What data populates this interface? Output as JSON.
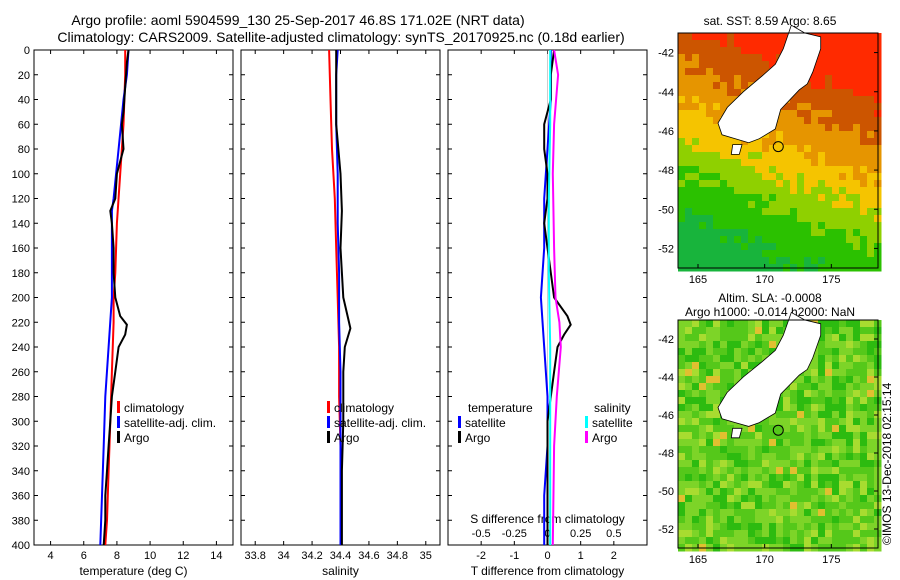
{
  "title": {
    "line1": "Argo profile: aoml 5904599_130 25-Sep-2017 46.8S 171.02E (NRT data)",
    "line2": "Climatology: CARS2009. Satellite-adjusted climatology: synTS_20170925.nc (0.18d earlier)"
  },
  "colors": {
    "climatology": "#ff0000",
    "satellite": "#0000ff",
    "argo": "#000000",
    "sat_s": "#00ffff",
    "argo_s": "#ff00ff"
  },
  "chart_data": [
    {
      "type": "line",
      "id": "temperature",
      "xlabel": "temperature (deg C)",
      "ylabel": "",
      "xlim": [
        3,
        15
      ],
      "ylim": [
        400,
        0
      ],
      "xticks": [
        "4",
        "6",
        "8",
        "10",
        "12",
        "14"
      ],
      "yticks": [
        "0",
        "20",
        "40",
        "60",
        "80",
        "100",
        "120",
        "140",
        "160",
        "180",
        "200",
        "220",
        "240",
        "260",
        "280",
        "300",
        "320",
        "340",
        "360",
        "380",
        "400"
      ],
      "legend": [
        "climatology",
        "satellite-adj. clim.",
        "Argo"
      ],
      "series": [
        {
          "name": "climatology",
          "pressure": [
            0,
            20,
            60,
            100,
            140,
            180,
            200,
            220,
            260,
            300,
            340,
            380,
            400
          ],
          "values": [
            8.5,
            8.5,
            8.4,
            8.2,
            8.0,
            7.9,
            7.8,
            7.8,
            7.7,
            7.6,
            7.5,
            7.4,
            7.3
          ]
        },
        {
          "name": "satellite-adj. clim.",
          "pressure": [
            0,
            20,
            40,
            80,
            120,
            130,
            160,
            200,
            240,
            280,
            320,
            360,
            400
          ],
          "values": [
            8.7,
            8.6,
            8.4,
            8.1,
            7.8,
            7.7,
            7.7,
            7.7,
            7.5,
            7.3,
            7.2,
            7.1,
            7.0
          ]
        },
        {
          "name": "Argo",
          "pressure": [
            0,
            10,
            30,
            50,
            60,
            80,
            100,
            120,
            130,
            140,
            160,
            180,
            200,
            215,
            222,
            230,
            240,
            260,
            280,
            300,
            320,
            340,
            360,
            380,
            400
          ],
          "values": [
            8.7,
            8.6,
            8.5,
            8.4,
            8.3,
            8.4,
            8.0,
            7.9,
            7.6,
            7.7,
            7.8,
            7.8,
            7.9,
            8.2,
            8.6,
            8.5,
            8.1,
            7.9,
            7.7,
            7.6,
            7.5,
            7.4,
            7.3,
            7.3,
            7.2
          ]
        }
      ]
    },
    {
      "type": "line",
      "id": "salinity",
      "xlabel": "salinity",
      "xlim": [
        33.7,
        35.1
      ],
      "ylim": [
        400,
        0
      ],
      "xticks": [
        "33.8",
        "34",
        "34.2",
        "34.4",
        "34.6",
        "34.8",
        "35"
      ],
      "legend": [
        "climatology",
        "satellite-adj. clim.",
        "Argo"
      ],
      "series": [
        {
          "name": "climatology",
          "pressure": [
            0,
            40,
            80,
            120,
            160,
            200,
            240,
            280,
            320,
            360,
            400
          ],
          "values": [
            34.32,
            34.33,
            34.34,
            34.36,
            34.37,
            34.38,
            34.39,
            34.39,
            34.4,
            34.4,
            34.4
          ]
        },
        {
          "name": "satellite-adj. clim.",
          "pressure": [
            0,
            20,
            60,
            100,
            140,
            180,
            220,
            260,
            300,
            340,
            400
          ],
          "values": [
            34.38,
            34.37,
            34.37,
            34.38,
            34.38,
            34.39,
            34.39,
            34.4,
            34.4,
            34.4,
            34.4
          ]
        },
        {
          "name": "Argo",
          "pressure": [
            0,
            20,
            60,
            100,
            130,
            160,
            180,
            200,
            215,
            225,
            240,
            260,
            300,
            340,
            380,
            400
          ],
          "values": [
            34.37,
            34.37,
            34.37,
            34.4,
            34.41,
            34.4,
            34.41,
            34.42,
            34.45,
            34.47,
            34.43,
            34.42,
            34.42,
            34.41,
            34.41,
            34.41
          ]
        }
      ]
    },
    {
      "type": "line",
      "id": "difference",
      "xlabel": "T difference from climatology",
      "xlabel_top": "S difference from climatology",
      "xlim": [
        -3,
        3
      ],
      "ylim": [
        400,
        0
      ],
      "xticks": [
        "-2",
        "-1",
        "0",
        "1",
        "2"
      ],
      "xticks_s": [
        "-0.5",
        "-0.25",
        "0",
        "0.25",
        "0.5"
      ],
      "legend_t_title": "temperature",
      "legend_s_title": "salinity",
      "legend_t": [
        "satellite",
        "Argo"
      ],
      "legend_s": [
        "satellite",
        "Argo"
      ],
      "series": [
        {
          "name": "T satellite",
          "pressure": [
            0,
            40,
            80,
            120,
            160,
            200,
            240,
            280,
            320,
            360,
            400
          ],
          "values": [
            0.1,
            0.1,
            0.0,
            -0.1,
            -0.1,
            -0.2,
            -0.1,
            0.0,
            0.0,
            -0.1,
            -0.1
          ]
        },
        {
          "name": "T Argo",
          "pressure": [
            0,
            20,
            40,
            60,
            80,
            100,
            120,
            140,
            160,
            180,
            200,
            215,
            222,
            230,
            240,
            260,
            280,
            300,
            340,
            380,
            400
          ],
          "values": [
            0.2,
            0.1,
            0.1,
            -0.1,
            -0.1,
            0.0,
            0.0,
            -0.1,
            0.0,
            0.1,
            0.2,
            0.6,
            0.7,
            0.5,
            0.3,
            0.2,
            0.1,
            0.0,
            0.0,
            0.0,
            0.0
          ]
        },
        {
          "name": "S satellite",
          "pressure": [
            0,
            60,
            120,
            180,
            240,
            300,
            360,
            400
          ],
          "values": [
            0.02,
            0.02,
            0.01,
            0.01,
            0.02,
            0.02,
            0.02,
            0.02
          ]
        },
        {
          "name": "S Argo",
          "pressure": [
            0,
            20,
            60,
            100,
            160,
            200,
            220,
            240,
            280,
            320,
            400
          ],
          "values": [
            0.05,
            0.08,
            0.05,
            0.04,
            0.05,
            0.06,
            0.09,
            0.1,
            0.07,
            0.05,
            0.04
          ]
        }
      ]
    },
    {
      "type": "heatmap",
      "id": "sst-map",
      "title": "sat. SST: 8.59 Argo: 8.65",
      "xticks": [
        "165",
        "170",
        "175"
      ],
      "yticks": [
        "-42",
        "-44",
        "-46",
        "-48",
        "-50",
        "-52"
      ],
      "xlim": [
        163.5,
        178.5
      ],
      "ylim": [
        -53,
        -41
      ]
    },
    {
      "type": "heatmap",
      "id": "sla-map",
      "title_line1": "Altim. SLA: -0.0008",
      "title_line2": "Argo h1000: -0.014 h2000: NaN",
      "xticks": [
        "165",
        "170",
        "175"
      ],
      "yticks": [
        "-42",
        "-44",
        "-46",
        "-48",
        "-50",
        "-52"
      ],
      "xlim": [
        163.5,
        178.5
      ],
      "ylim": [
        -53,
        -41
      ]
    }
  ],
  "watermark": "©IMOS 13-Dec-2018 02:15:14"
}
